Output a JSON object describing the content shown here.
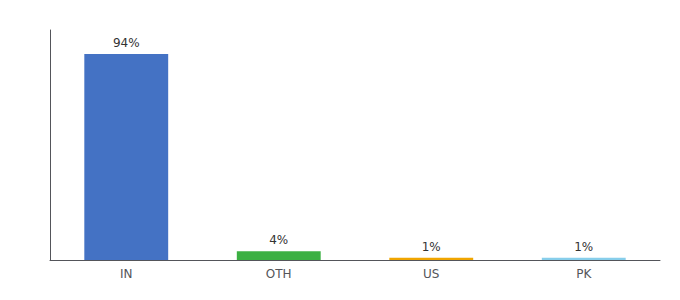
{
  "chart_data": {
    "type": "bar",
    "categories": [
      "IN",
      "OTH",
      "US",
      "PK"
    ],
    "values": [
      94,
      4,
      1,
      1
    ],
    "value_labels": [
      "94%",
      "4%",
      "1%",
      "1%"
    ],
    "colors": [
      "#4472c4",
      "#3cb043",
      "#f0a500",
      "#87ceeb"
    ],
    "ylim": [
      0,
      105
    ],
    "tick_labels": "x",
    "grid": false,
    "data_labels": true
  }
}
